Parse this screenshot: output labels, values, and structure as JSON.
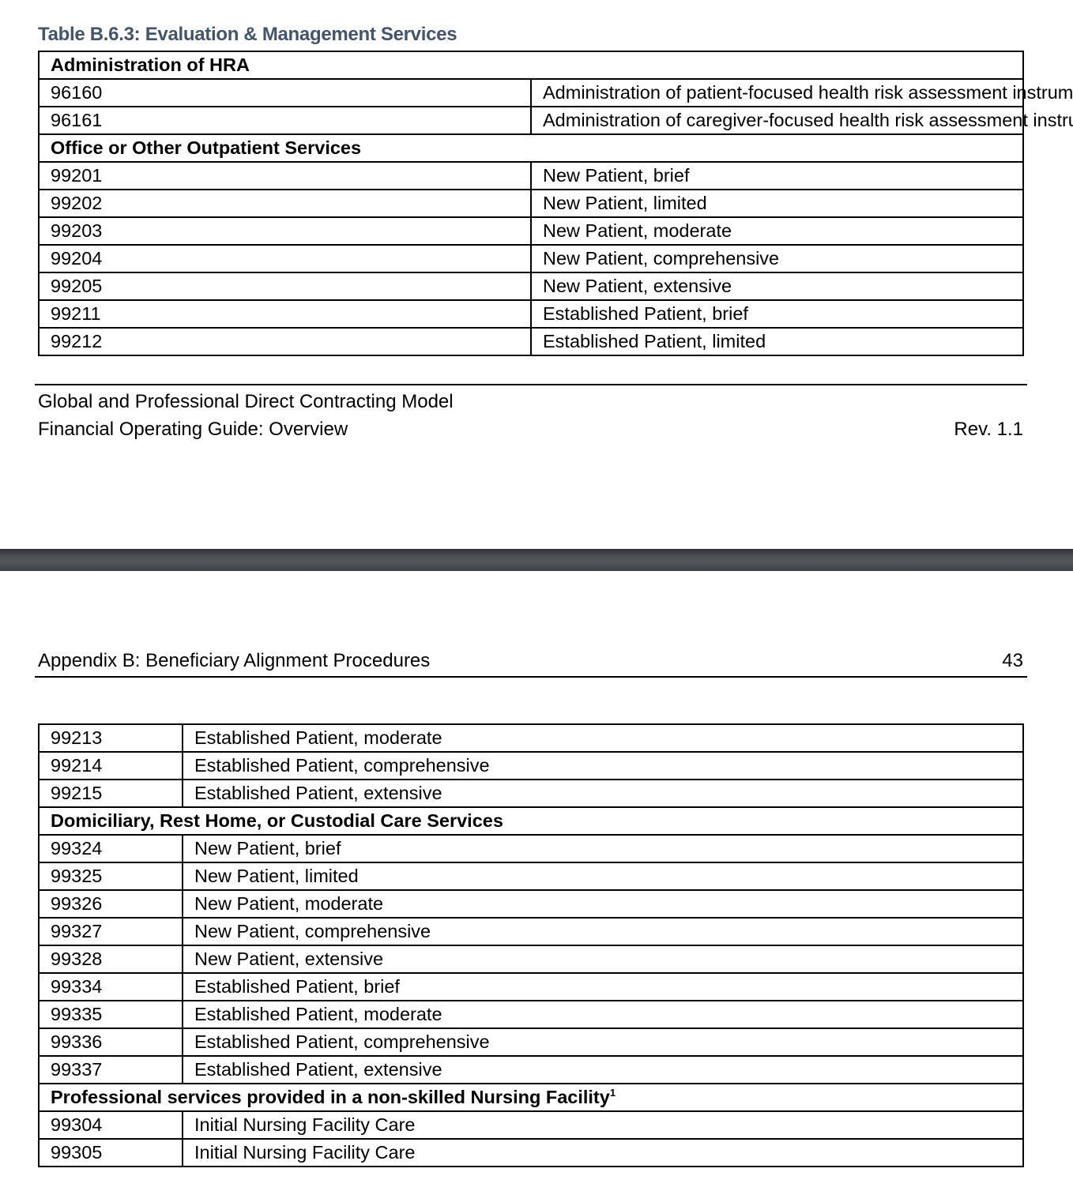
{
  "page1": {
    "table_title": "Table B.6.3: Evaluation & Management Services",
    "rows": [
      {
        "section": "Administration of HRA"
      },
      {
        "code": "96160",
        "desc": "Administration of patient-focused health risk assessment instrument"
      },
      {
        "code": "96161",
        "desc": "Administration of caregiver-focused health risk assessment instrument"
      },
      {
        "section": "Office or Other Outpatient Services"
      },
      {
        "code": "99201",
        "desc": "New Patient, brief"
      },
      {
        "code": "99202",
        "desc": "New Patient, limited"
      },
      {
        "code": "99203",
        "desc": "New Patient, moderate"
      },
      {
        "code": "99204",
        "desc": "New Patient, comprehensive"
      },
      {
        "code": "99205",
        "desc": "New Patient, extensive"
      },
      {
        "code": "99211",
        "desc": "Established Patient, brief"
      },
      {
        "code": "99212",
        "desc": "Established Patient, limited"
      }
    ],
    "footer": {
      "line1": "Global and Professional Direct Contracting Model",
      "line2": "Financial Operating Guide: Overview",
      "revision": "Rev. 1.1"
    }
  },
  "page2": {
    "header": {
      "title": "Appendix B: Beneficiary Alignment Procedures",
      "page_number": "43"
    },
    "rows": [
      {
        "code": "99213",
        "desc": "Established Patient, moderate"
      },
      {
        "code": "99214",
        "desc": "Established Patient, comprehensive"
      },
      {
        "code": "99215",
        "desc": "Established Patient, extensive"
      },
      {
        "section": "Domiciliary, Rest Home, or Custodial Care Services"
      },
      {
        "code": "99324",
        "desc": "New Patient, brief"
      },
      {
        "code": "99325",
        "desc": "New Patient, limited"
      },
      {
        "code": "99326",
        "desc": "New Patient, moderate"
      },
      {
        "code": "99327",
        "desc": "New Patient, comprehensive"
      },
      {
        "code": "99328",
        "desc": "New Patient, extensive"
      },
      {
        "code": "99334",
        "desc": "Established Patient, brief"
      },
      {
        "code": "99335",
        "desc": "Established Patient, moderate"
      },
      {
        "code": "99336",
        "desc": "Established Patient, comprehensive"
      },
      {
        "code": "99337",
        "desc": "Established Patient, extensive"
      },
      {
        "section": "Professional services provided in a non-skilled Nursing Facility",
        "footnote": "1"
      },
      {
        "code": "99304",
        "desc": "Initial Nursing Facility Care"
      },
      {
        "code": "99305",
        "desc": "Initial Nursing Facility Care"
      }
    ]
  }
}
